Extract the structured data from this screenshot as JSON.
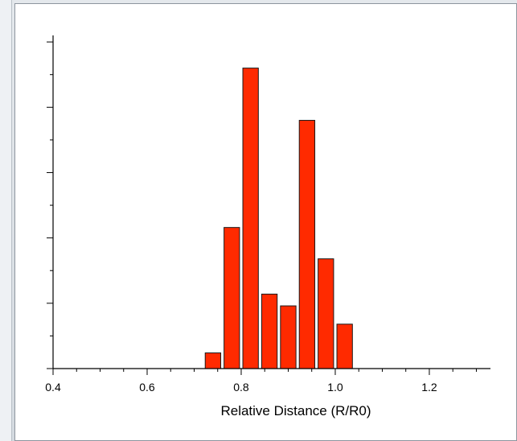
{
  "chart_data": {
    "type": "bar",
    "title": "",
    "xlabel": "Relative Distance (R/R0)",
    "ylabel": "",
    "xlim": [
      0.4,
      1.33
    ],
    "ylim": [
      0,
      25.5
    ],
    "x_ticks": [
      0.4,
      0.6,
      0.8,
      1.0,
      1.2
    ],
    "x_tick_labels": [
      "0.4",
      "0.6",
      "0.8",
      "1.0",
      "1.2"
    ],
    "y_ticks": [
      0,
      5,
      10,
      15,
      20,
      25
    ],
    "bar_width": 0.033,
    "x": [
      0.74,
      0.78,
      0.82,
      0.86,
      0.9,
      0.94,
      0.98,
      1.02
    ],
    "values": [
      1.2,
      10.8,
      23.0,
      5.7,
      4.8,
      19.0,
      8.4,
      3.4
    ],
    "bar_color": "#ff2a00",
    "bar_edge_color": "#1a1a1a",
    "grid": false,
    "legend": "none"
  }
}
